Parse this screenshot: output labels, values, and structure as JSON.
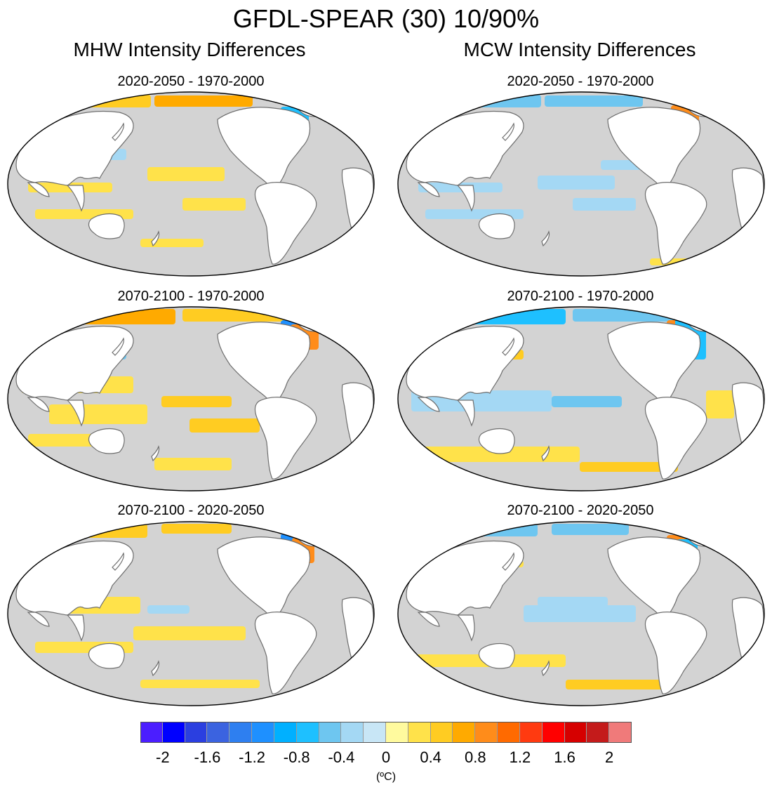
{
  "title": "GFDL-SPEAR (30) 10/90%",
  "columns": [
    {
      "title": "MHW Intensity Differences"
    },
    {
      "title": "MCW Intensity Differences"
    }
  ],
  "panels": [
    {
      "label": "2020-2050 - 1970-2000",
      "variable": "MHW"
    },
    {
      "label": "2020-2050 - 1970-2000",
      "variable": "MCW"
    },
    {
      "label": "2070-2100 - 1970-2000",
      "variable": "MHW"
    },
    {
      "label": "2070-2100 - 1970-2000",
      "variable": "MCW"
    },
    {
      "label": "2070-2100 - 2020-2050",
      "variable": "MHW"
    },
    {
      "label": "2070-2100 - 2020-2050",
      "variable": "MCW"
    }
  ],
  "colorbar": {
    "colors": [
      "#4b1eff",
      "#0000ff",
      "#2b3fe0",
      "#3b63e0",
      "#2e7ff0",
      "#1e90ff",
      "#00b0ff",
      "#1ec0ff",
      "#6ec6f0",
      "#a4d8f4",
      "#c8e6f6",
      "#fffa9e",
      "#ffe24a",
      "#ffcc22",
      "#ffaa00",
      "#ff8c1a",
      "#ff6a00",
      "#ff3a10",
      "#ff0000",
      "#d60000",
      "#c41b1b",
      "#f07a7a"
    ],
    "tick_labels": [
      "-2",
      "-1.6",
      "-1.2",
      "-0.8",
      "-0.4",
      "0",
      "0.4",
      "0.8",
      "1.2",
      "1.6",
      "2"
    ],
    "units": "(ºC)"
  },
  "colors": {
    "ocean_neutral": "#d3d3d3",
    "land": "#ffffff",
    "coastline": "#6e6e6e"
  }
}
